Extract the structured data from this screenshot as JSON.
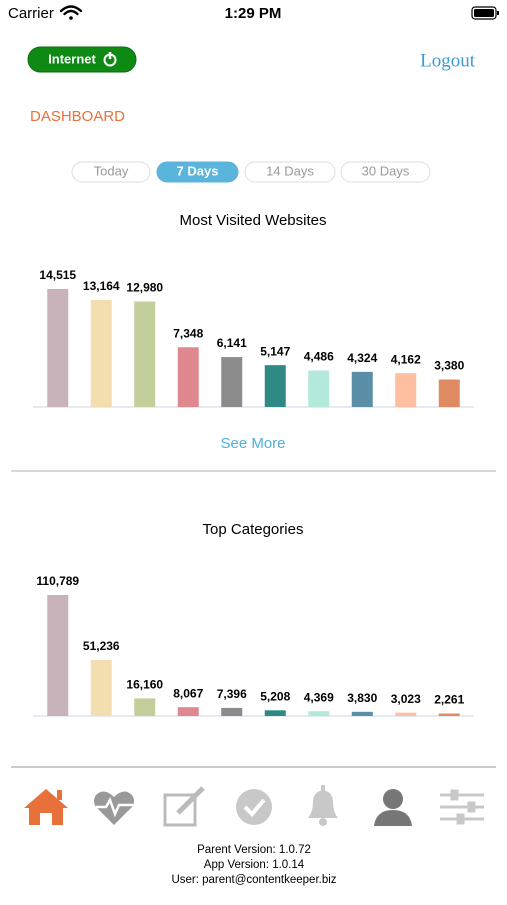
{
  "status_bar": {
    "carrier": "Carrier",
    "time": "1:29 PM"
  },
  "header": {
    "internet_button": "Internet",
    "logout": "Logout",
    "section": "DASHBOARD"
  },
  "tabs": [
    "Today",
    "7 Days",
    "14 Days",
    "30 Days"
  ],
  "selected_tab": 1,
  "see_more": "See More",
  "chart_data": [
    {
      "type": "bar",
      "title": "Most Visited Websites",
      "values": [
        14515,
        13164,
        12980,
        7348,
        6141,
        5147,
        4486,
        4324,
        4162,
        3380
      ],
      "value_labels": [
        "14,515",
        "13,164",
        "12,980",
        "7,348",
        "6,141",
        "5,147",
        "4,486",
        "4,324",
        "4,162",
        "3,380"
      ],
      "colors": [
        "#c9b3ba",
        "#f3deaf",
        "#c3cf9b",
        "#e0888f",
        "#8c8c8c",
        "#2f8a85",
        "#b3e8dd",
        "#5b8ea7",
        "#fdbfa0",
        "#e08a62"
      ]
    },
    {
      "type": "bar",
      "title": "Top Categories",
      "values": [
        110789,
        51236,
        16160,
        8067,
        7396,
        5208,
        4369,
        3830,
        3023,
        2261
      ],
      "value_labels": [
        "110,789",
        "51,236",
        "16,160",
        "8,067",
        "7,396",
        "5,208",
        "4,369",
        "3,830",
        "3,023",
        "2,261"
      ],
      "colors": [
        "#c9b3ba",
        "#f3deaf",
        "#c3cf9b",
        "#e0888f",
        "#8c8c8c",
        "#2f8a85",
        "#b3e8dd",
        "#5b8ea7",
        "#fdbfa0",
        "#e08a62"
      ]
    }
  ],
  "footer": [
    "Parent Version: 1.0.72",
    "App Version: 1.0.14",
    "User: parent@contentkeeper.biz"
  ]
}
